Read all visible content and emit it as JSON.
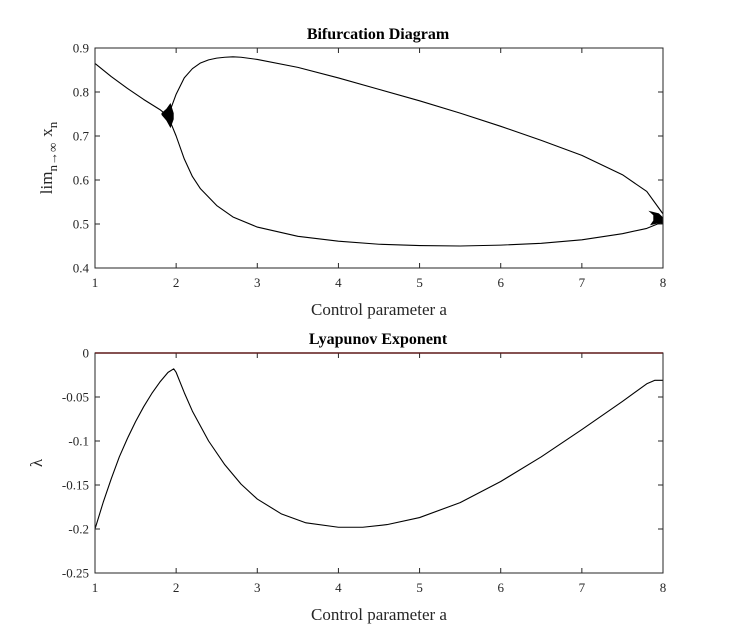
{
  "chart_data": [
    {
      "type": "line",
      "title": "Bifurcation Diagram",
      "xlabel": "Control parameter a",
      "ylabel_parts": {
        "main": "lim",
        "sub": "n→∞",
        "var": "x",
        "var_sub": "n"
      },
      "xlim": [
        1,
        8
      ],
      "ylim": [
        0.4,
        0.9
      ],
      "xticks": [
        "1",
        "2",
        "3",
        "4",
        "5",
        "6",
        "7",
        "8"
      ],
      "yticks": [
        "0.4",
        "0.5",
        "0.6",
        "0.7",
        "0.8",
        "0.9"
      ],
      "grid": false,
      "series": [
        {
          "color": "#000000",
          "x": [
            1.0,
            1.2,
            1.4,
            1.6,
            1.8,
            1.9
          ],
          "y": [
            0.865,
            0.835,
            0.808,
            0.783,
            0.76,
            0.745
          ]
        },
        {
          "color": "#000000",
          "x": [
            1.9,
            2.0,
            2.1,
            2.2,
            2.3,
            2.4,
            2.5,
            2.6,
            2.7,
            2.8,
            3.0,
            3.5,
            4.0,
            4.5,
            5.0,
            5.5,
            6.0,
            6.5,
            7.0,
            7.5,
            7.8,
            8.0
          ],
          "y": [
            0.745,
            0.795,
            0.832,
            0.853,
            0.866,
            0.873,
            0.877,
            0.879,
            0.88,
            0.879,
            0.874,
            0.856,
            0.832,
            0.806,
            0.78,
            0.752,
            0.722,
            0.69,
            0.656,
            0.612,
            0.574,
            0.523
          ]
        },
        {
          "color": "#000000",
          "x": [
            1.9,
            2.0,
            2.1,
            2.2,
            2.3,
            2.5,
            2.7,
            3.0,
            3.5,
            4.0,
            4.5,
            5.0,
            5.5,
            6.0,
            6.5,
            7.0,
            7.5,
            7.8,
            8.0
          ],
          "y": [
            0.745,
            0.7,
            0.648,
            0.608,
            0.58,
            0.542,
            0.516,
            0.493,
            0.472,
            0.461,
            0.454,
            0.451,
            0.45,
            0.452,
            0.456,
            0.464,
            0.478,
            0.49,
            0.505
          ]
        }
      ]
    },
    {
      "type": "line",
      "title": "Lyapunov Exponent",
      "xlabel": "Control parameter a",
      "ylabel": "λ",
      "xlim": [
        1,
        8
      ],
      "ylim": [
        -0.25,
        0
      ],
      "xticks": [
        "1",
        "2",
        "3",
        "4",
        "5",
        "6",
        "7",
        "8"
      ],
      "yticks": [
        "-0.25",
        "-0.2",
        "-0.15",
        "-0.1",
        "-0.05",
        "0"
      ],
      "grid": false,
      "series": [
        {
          "color": "#000000",
          "x": [
            1.0,
            1.1,
            1.2,
            1.3,
            1.4,
            1.5,
            1.6,
            1.7,
            1.8,
            1.9,
            1.97,
            2.0,
            2.1,
            2.2,
            2.4,
            2.6,
            2.8,
            3.0,
            3.3,
            3.6,
            4.0,
            4.3,
            4.6,
            5.0,
            5.5,
            6.0,
            6.5,
            7.0,
            7.5,
            7.8,
            7.9,
            8.0
          ],
          "y": [
            -0.2,
            -0.17,
            -0.143,
            -0.118,
            -0.097,
            -0.078,
            -0.061,
            -0.046,
            -0.033,
            -0.022,
            -0.018,
            -0.022,
            -0.045,
            -0.066,
            -0.1,
            -0.127,
            -0.149,
            -0.166,
            -0.183,
            -0.193,
            -0.198,
            -0.198,
            -0.195,
            -0.187,
            -0.17,
            -0.146,
            -0.118,
            -0.087,
            -0.055,
            -0.035,
            -0.031,
            -0.031
          ]
        },
        {
          "color": "#cc0000",
          "x": [
            1,
            8
          ],
          "y": [
            0,
            0
          ]
        }
      ]
    }
  ]
}
